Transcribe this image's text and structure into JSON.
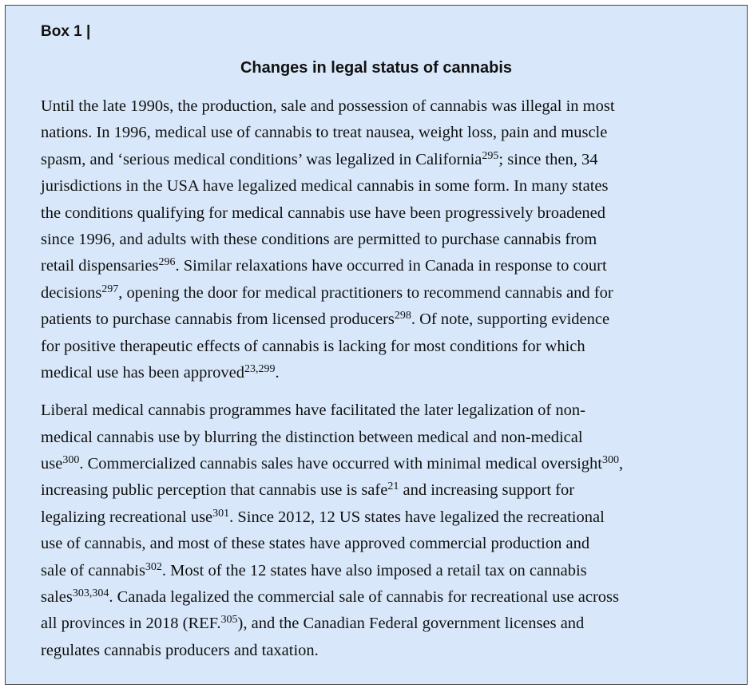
{
  "box": {
    "label": "Box 1 |",
    "title": "Changes in legal status of cannabis",
    "paragraphs": [
      {
        "lines": [
          [
            "Until the late 1990s, the production, sale and possession of cannabis was illegal in most"
          ],
          [
            "nations. In 1996, medical use of cannabis to treat nausea, weight loss, pain and muscle"
          ],
          [
            "spasm, and ‘serious medical conditions’ was legalized in California",
            {
              "sup": "295"
            },
            "; since then, 34"
          ],
          [
            "jurisdictions in the USA have legalized medical cannabis in some form. In many states"
          ],
          [
            "the conditions qualifying for medical cannabis use have been progressively broadened"
          ],
          [
            "since 1996, and adults with these conditions are permitted to purchase cannabis from"
          ],
          [
            "retail dispensaries",
            {
              "sup": "296"
            },
            ". Similar relaxations have occurred in Canada in response to court"
          ],
          [
            "decisions",
            {
              "sup": "297"
            },
            ", opening the door for medical practitioners to recommend cannabis and for"
          ],
          [
            "patients to purchase cannabis from licensed producers",
            {
              "sup": "298"
            },
            ". Of note, supporting evidence"
          ],
          [
            "for positive therapeutic effects of cannabis is lacking for most conditions for which"
          ],
          [
            "medical use has been approved",
            {
              "sup": "23,299"
            },
            "."
          ]
        ]
      },
      {
        "lines": [
          [
            "Liberal medical cannabis programmes have facilitated the later legalization of non-"
          ],
          [
            "medical cannabis use by blurring the distinction between medical and non-medical"
          ],
          [
            "use",
            {
              "sup": "300"
            },
            ". Commercialized cannabis sales have occurred with minimal medical oversight",
            {
              "sup": "300"
            },
            ","
          ],
          [
            "increasing public perception that cannabis use is safe",
            {
              "sup": "21"
            },
            " and increasing support for"
          ],
          [
            "legalizing recreational use",
            {
              "sup": "301"
            },
            ". Since 2012, 12 US states have legalized the recreational"
          ],
          [
            "use of cannabis, and most of these states have approved commercial production and"
          ],
          [
            "sale of cannabis",
            {
              "sup": "302"
            },
            ". Most of the 12 states have also imposed a retail tax on cannabis"
          ],
          [
            "sales",
            {
              "sup": "303,304"
            },
            ". Canada legalized the commercial sale of cannabis for recreational use across"
          ],
          [
            "all provinces in 2018 (REF.",
            {
              "sup": "305"
            },
            "), and the Canadian Federal government licenses and"
          ],
          [
            "regulates cannabis producers and taxation."
          ]
        ]
      }
    ]
  }
}
